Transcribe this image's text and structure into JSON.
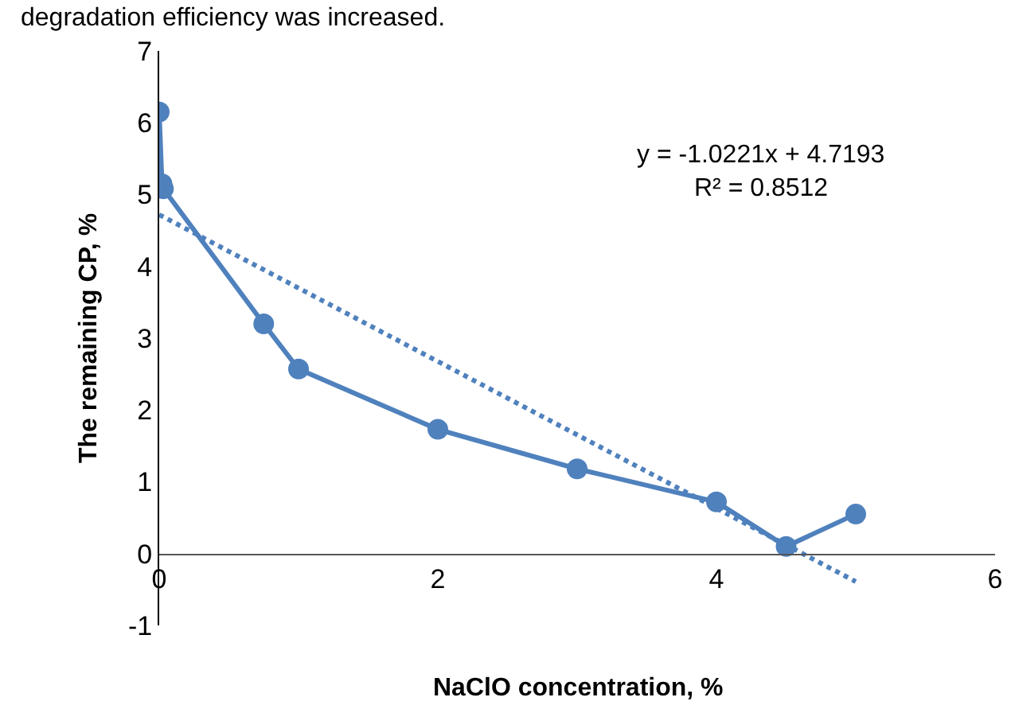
{
  "chart_data": {
    "type": "line",
    "xlabel": "NaClO concentration, %",
    "ylabel": "The remaining CP, %",
    "x": [
      0,
      0.02,
      0.03,
      0.75,
      1,
      2,
      3,
      4,
      4.5,
      5
    ],
    "series": [
      {
        "color": "#4f81bd",
        "marker": "circle",
        "line_style": "solid",
        "values": [
          6.15,
          5.15,
          5.08,
          3.2,
          2.57,
          1.73,
          1.18,
          0.72,
          0.1,
          0.55
        ]
      },
      {
        "color": "#4f81bd",
        "marker": "none",
        "line_style": "dotted",
        "x": [
          0,
          5
        ],
        "values": [
          4.72,
          -0.39
        ]
      }
    ],
    "xlim": [
      0,
      6
    ],
    "xticks": [
      0,
      2,
      4,
      6
    ],
    "ylim": [
      -1,
      7
    ],
    "yticks": [
      -1,
      0,
      1,
      2,
      3,
      4,
      5,
      6,
      7
    ],
    "annotations": [
      "degradation efficiency was increased.",
      "y = -1.0221x + 4.7193",
      "R² = 0.8512"
    ]
  }
}
